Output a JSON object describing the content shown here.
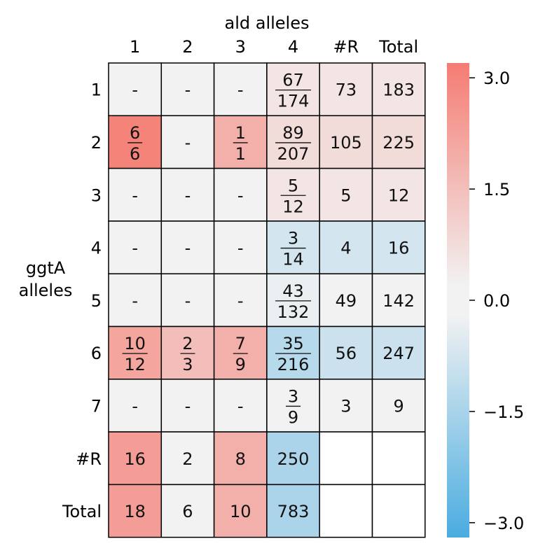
{
  "chart_data": {
    "type": "heatmap",
    "col_axis_label": "ald alleles",
    "row_axis_label": [
      "ggtA",
      "alleles"
    ],
    "columns": [
      "1",
      "2",
      "3",
      "4",
      "#R",
      "Total"
    ],
    "rows": [
      "1",
      "2",
      "3",
      "4",
      "5",
      "6",
      "7",
      "#R",
      "Total"
    ],
    "cells": [
      [
        {
          "text": "-",
          "v": 0
        },
        {
          "text": "-",
          "v": 0
        },
        {
          "text": "-",
          "v": 0
        },
        {
          "num": "67",
          "den": "174",
          "v": 0.35
        },
        {
          "text": "73",
          "v": 0.35
        },
        {
          "text": "183",
          "v": 0.35
        }
      ],
      [
        {
          "num": "6",
          "den": "6",
          "v": 3.0
        },
        {
          "text": "-",
          "v": 0
        },
        {
          "num": "1",
          "den": "1",
          "v": 1.8
        },
        {
          "num": "89",
          "den": "207",
          "v": 0.6
        },
        {
          "text": "105",
          "v": 0.6
        },
        {
          "text": "225",
          "v": 0.6
        }
      ],
      [
        {
          "text": "-",
          "v": 0
        },
        {
          "text": "-",
          "v": 0
        },
        {
          "text": "-",
          "v": 0
        },
        {
          "num": "5",
          "den": "12",
          "v": 0.35
        },
        {
          "text": "5",
          "v": 0.35
        },
        {
          "text": "12",
          "v": 0.35
        }
      ],
      [
        {
          "text": "-",
          "v": 0
        },
        {
          "text": "-",
          "v": 0
        },
        {
          "text": "-",
          "v": 0
        },
        {
          "num": "3",
          "den": "14",
          "v": -0.6
        },
        {
          "text": "4",
          "v": -0.6
        },
        {
          "text": "16",
          "v": -0.6
        }
      ],
      [
        {
          "text": "-",
          "v": 0
        },
        {
          "text": "-",
          "v": 0
        },
        {
          "text": "-",
          "v": 0
        },
        {
          "num": "43",
          "den": "132",
          "v": -0.15
        },
        {
          "text": "49",
          "v": 0
        },
        {
          "text": "142",
          "v": 0
        }
      ],
      [
        {
          "num": "10",
          "den": "12",
          "v": 2.1
        },
        {
          "num": "2",
          "den": "3",
          "v": 1.4
        },
        {
          "num": "7",
          "den": "9",
          "v": 1.8
        },
        {
          "num": "35",
          "den": "216",
          "v": -1.15
        },
        {
          "text": "56",
          "v": -0.75
        },
        {
          "text": "247",
          "v": -0.75
        }
      ],
      [
        {
          "text": "-",
          "v": 0
        },
        {
          "text": "-",
          "v": 0
        },
        {
          "text": "-",
          "v": 0
        },
        {
          "num": "3",
          "den": "9",
          "v": 0
        },
        {
          "text": "3",
          "v": 0
        },
        {
          "text": "9",
          "v": 0
        }
      ],
      [
        {
          "text": "16",
          "v": 2.3
        },
        {
          "text": "2",
          "v": 0
        },
        {
          "text": "8",
          "v": 1.8
        },
        {
          "text": "250",
          "v": -1.35
        },
        {
          "text": "",
          "v": null
        },
        {
          "text": "",
          "v": null
        }
      ],
      [
        {
          "text": "18",
          "v": 2.3
        },
        {
          "text": "6",
          "v": 0
        },
        {
          "text": "10",
          "v": 1.8
        },
        {
          "text": "783",
          "v": -1.35
        },
        {
          "text": "",
          "v": null
        },
        {
          "text": "",
          "v": null
        }
      ]
    ],
    "colorbar": {
      "range": [
        -3.2,
        3.2
      ],
      "ticks": [
        3.0,
        1.5,
        0.0,
        -1.5,
        -3.0
      ],
      "tick_labels": [
        "3.0",
        "1.5",
        "0.0",
        "−1.5",
        "−3.0"
      ],
      "high_color": "#f47c72",
      "mid_color": "#f2f2f2",
      "low_color": "#4aace0"
    }
  }
}
